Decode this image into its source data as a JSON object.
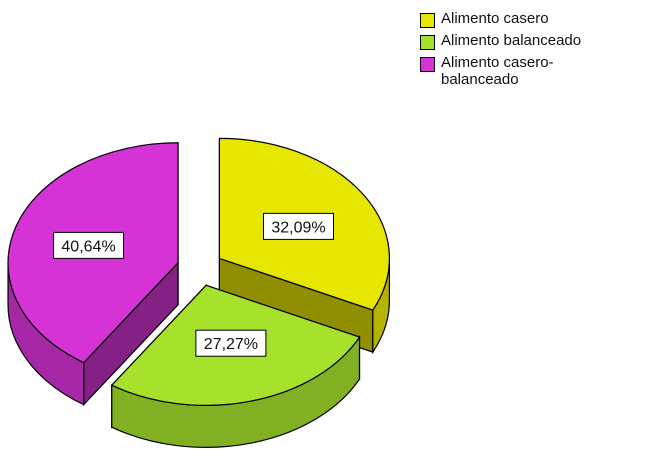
{
  "chart_data": {
    "type": "pie",
    "title": "",
    "categories": [
      "Alimento casero",
      "Alimento balanceado",
      "Alimento casero-balanceado"
    ],
    "values": [
      32.09,
      27.27,
      40.64
    ],
    "data_labels": [
      "32,09%",
      "27,27%",
      "40,64%"
    ],
    "colors": [
      "#e6e600",
      "#a6e22b",
      "#d633d6"
    ],
    "style": "3d-exploded",
    "legend_position": "top-right"
  }
}
